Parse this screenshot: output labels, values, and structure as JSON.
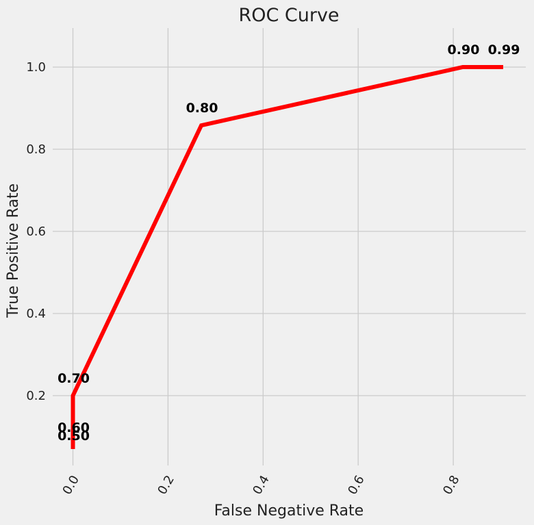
{
  "chart_data": {
    "type": "line",
    "title": "ROC Curve",
    "xlabel": "False Negative Rate",
    "ylabel": "True Positive Rate",
    "xlim": [
      -0.0425,
      0.9525
    ],
    "ylim": [
      0.03,
      1.095
    ],
    "x_ticks": [
      0.0,
      0.2,
      0.4,
      0.6,
      0.8
    ],
    "x_tick_labels": [
      "0.0",
      "0.2",
      "0.4",
      "0.6",
      "0.8"
    ],
    "x_tick_rotation": 60,
    "y_ticks": [
      0.2,
      0.4,
      0.6,
      0.8,
      1.0
    ],
    "y_tick_labels": [
      "0.2",
      "0.4",
      "0.6",
      "0.8",
      "1.0"
    ],
    "grid": true,
    "series": [
      {
        "color": "#ff0000",
        "x": [
          0.0,
          0.0,
          0.0,
          0.27,
          0.82,
          0.905
        ],
        "y": [
          0.07,
          0.1,
          0.2,
          0.858,
          1.0,
          1.0
        ]
      }
    ],
    "annotations": [
      {
        "text": "0.50",
        "x": 0.0,
        "y": 0.1
      },
      {
        "text": "0.60",
        "x": 0.0,
        "y": 0.12
      },
      {
        "text": "0.70",
        "x": 0.0,
        "y": 0.24
      },
      {
        "text": "0.80",
        "x": 0.27,
        "y": 0.898
      },
      {
        "text": "0.90",
        "x": 0.82,
        "y": 1.04
      },
      {
        "text": "0.99",
        "x": 0.905,
        "y": 1.04
      }
    ]
  }
}
